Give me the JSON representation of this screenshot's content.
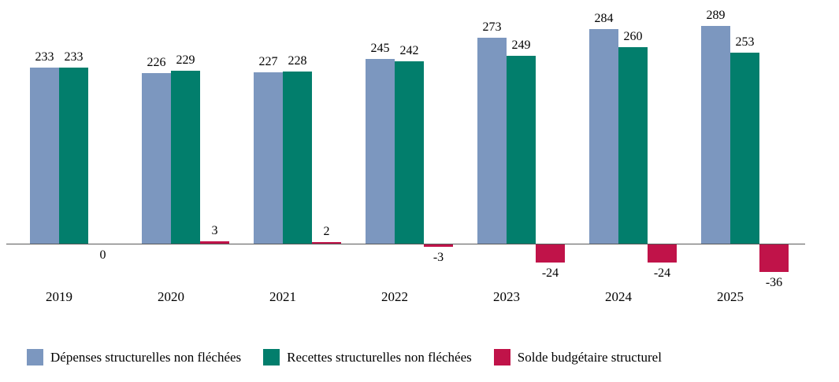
{
  "chart_data": {
    "type": "bar",
    "categories": [
      "2019",
      "2020",
      "2021",
      "2022",
      "2023",
      "2024",
      "2025"
    ],
    "series": [
      {
        "name": "Dépenses structurelles non fléchées",
        "color": "#7C97BF",
        "values": [
          233,
          226,
          227,
          245,
          273,
          284,
          289
        ]
      },
      {
        "name": "Recettes structurelles non fléchées",
        "color": "#027E6C",
        "values": [
          233,
          229,
          228,
          242,
          249,
          260,
          253
        ]
      },
      {
        "name": "Solde budgétaire structurel",
        "color": "#C01349",
        "values": [
          0,
          3,
          2,
          -3,
          -24,
          -24,
          -36
        ]
      }
    ],
    "title": "",
    "xlabel": "",
    "ylabel": "",
    "ylim": [
      -36,
      289
    ],
    "grid": false,
    "legend_position": "bottom",
    "baseline": 0
  }
}
